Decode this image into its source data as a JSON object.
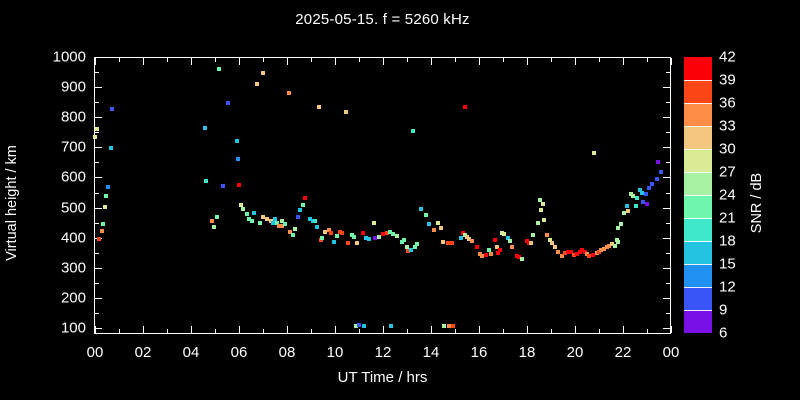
{
  "title": "2025-05-15. f = 5260 kHz",
  "chart_data": {
    "type": "scatter",
    "title": "2025-05-15. f = 5260 kHz",
    "xlabel": "UT Time / hrs",
    "ylabel": "Virtual height / km",
    "xlim": [
      0,
      24
    ],
    "ylim": [
      80,
      1000
    ],
    "grid": false,
    "x_ticks": {
      "hours": [
        0,
        2,
        4,
        6,
        8,
        10,
        12,
        14,
        16,
        18,
        20,
        22,
        24
      ],
      "labels": [
        "00",
        "02",
        "04",
        "06",
        "08",
        "10",
        "12",
        "14",
        "16",
        "18",
        "20",
        "22",
        "00"
      ],
      "minor_every_hr": 1
    },
    "y_ticks": {
      "km": [
        100,
        200,
        300,
        400,
        500,
        600,
        700,
        800,
        900,
        1000
      ],
      "labels": [
        "100",
        "200",
        "300",
        "400",
        "500",
        "600",
        "700",
        "800",
        "900",
        "1000"
      ],
      "minor_km": [
        150,
        250,
        350,
        450,
        550,
        650,
        750,
        850,
        950
      ]
    },
    "colorbar": {
      "label": "SNR / dB",
      "ticks": [
        6,
        9,
        12,
        15,
        18,
        21,
        24,
        27,
        30,
        33,
        36,
        39,
        42
      ],
      "colors_bottom_to_top": [
        "#7a10e8",
        "#3a55f7",
        "#2090f2",
        "#22c4e2",
        "#3fe8c8",
        "#6ef6ac",
        "#a5f2a2",
        "#d9eb94",
        "#f3c67d",
        "#fd8d47",
        "#fc4617",
        "#fb0007"
      ]
    },
    "points_format": [
      "ut_hour",
      "virtual_height_km",
      "snr_db"
    ],
    "points": [
      [
        0.02,
        734,
        29
      ],
      [
        0.08,
        760,
        29
      ],
      [
        0.17,
        396,
        38
      ],
      [
        0.29,
        422,
        35
      ],
      [
        0.33,
        445,
        23
      ],
      [
        0.42,
        502,
        29
      ],
      [
        0.46,
        538,
        23
      ],
      [
        0.55,
        568,
        14
      ],
      [
        0.67,
        698,
        17
      ],
      [
        0.71,
        827,
        11
      ],
      [
        4.58,
        764,
        17
      ],
      [
        4.63,
        588,
        20
      ],
      [
        4.86,
        454,
        35
      ],
      [
        4.96,
        435,
        26
      ],
      [
        5.07,
        468,
        23
      ],
      [
        5.17,
        960,
        23
      ],
      [
        5.35,
        572,
        11
      ],
      [
        5.55,
        847,
        11
      ],
      [
        5.9,
        721,
        17
      ],
      [
        5.95,
        661,
        14
      ],
      [
        6.0,
        575,
        41
      ],
      [
        6.08,
        509,
        29
      ],
      [
        6.18,
        494,
        26
      ],
      [
        6.32,
        479,
        23
      ],
      [
        6.43,
        461,
        23
      ],
      [
        6.53,
        454,
        23
      ],
      [
        6.64,
        483,
        17
      ],
      [
        6.75,
        909,
        32
      ],
      [
        6.88,
        450,
        23
      ],
      [
        6.99,
        948,
        32
      ],
      [
        6.99,
        470,
        32
      ],
      [
        7.15,
        461,
        32
      ],
      [
        7.32,
        456,
        32
      ],
      [
        7.4,
        450,
        17
      ],
      [
        7.5,
        461,
        17
      ],
      [
        7.6,
        448,
        23
      ],
      [
        7.68,
        440,
        35
      ],
      [
        7.78,
        454,
        26
      ],
      [
        7.79,
        438,
        35
      ],
      [
        7.92,
        447,
        23
      ],
      [
        8.1,
        879,
        35
      ],
      [
        8.13,
        420,
        35
      ],
      [
        8.24,
        409,
        23
      ],
      [
        8.33,
        428,
        26
      ],
      [
        8.47,
        468,
        11
      ],
      [
        8.54,
        492,
        17
      ],
      [
        8.68,
        509,
        23
      ],
      [
        8.75,
        531,
        41
      ],
      [
        8.96,
        461,
        17
      ],
      [
        9.07,
        456,
        17
      ],
      [
        9.17,
        454,
        20
      ],
      [
        9.26,
        437,
        17
      ],
      [
        9.35,
        835,
        32
      ],
      [
        9.4,
        392,
        38
      ],
      [
        9.47,
        398,
        23
      ],
      [
        9.58,
        420,
        32
      ],
      [
        9.76,
        424,
        35
      ],
      [
        9.82,
        414,
        38
      ],
      [
        9.96,
        384,
        17
      ],
      [
        10.1,
        407,
        23
      ],
      [
        10.2,
        420,
        38
      ],
      [
        10.3,
        417,
        38
      ],
      [
        10.46,
        818,
        32
      ],
      [
        10.55,
        383,
        38
      ],
      [
        10.7,
        409,
        23
      ],
      [
        10.8,
        403,
        23
      ],
      [
        10.88,
        107,
        26
      ],
      [
        10.9,
        383,
        32
      ],
      [
        11.0,
        111,
        11
      ],
      [
        11.18,
        415,
        41
      ],
      [
        11.22,
        105,
        17
      ],
      [
        11.3,
        398,
        17
      ],
      [
        11.43,
        395,
        17
      ],
      [
        11.64,
        448,
        29
      ],
      [
        11.67,
        398,
        8
      ],
      [
        11.85,
        403,
        26
      ],
      [
        12.0,
        411,
        41
      ],
      [
        12.15,
        415,
        38
      ],
      [
        12.3,
        420,
        23
      ],
      [
        12.32,
        107,
        17
      ],
      [
        12.4,
        412,
        23
      ],
      [
        12.57,
        405,
        26
      ],
      [
        12.78,
        386,
        23
      ],
      [
        12.87,
        392,
        23
      ],
      [
        12.99,
        370,
        26
      ],
      [
        13.05,
        356,
        38
      ],
      [
        13.17,
        359,
        17
      ],
      [
        13.26,
        754,
        20
      ],
      [
        13.33,
        370,
        23
      ],
      [
        13.4,
        379,
        23
      ],
      [
        13.58,
        494,
        17
      ],
      [
        13.79,
        475,
        23
      ],
      [
        13.92,
        444,
        17
      ],
      [
        14.14,
        426,
        35
      ],
      [
        14.3,
        450,
        29
      ],
      [
        14.4,
        433,
        32
      ],
      [
        14.5,
        387,
        32
      ],
      [
        14.54,
        107,
        26
      ],
      [
        14.72,
        383,
        38
      ],
      [
        14.75,
        108,
        35
      ],
      [
        14.86,
        383,
        38
      ],
      [
        14.9,
        108,
        38
      ],
      [
        15.25,
        398,
        17
      ],
      [
        15.35,
        417,
        41
      ],
      [
        15.4,
        835,
        41
      ],
      [
        15.4,
        409,
        26
      ],
      [
        15.5,
        401,
        32
      ],
      [
        15.58,
        395,
        32
      ],
      [
        15.7,
        390,
        35
      ],
      [
        15.9,
        368,
        41
      ],
      [
        16.04,
        346,
        35
      ],
      [
        16.14,
        339,
        35
      ],
      [
        16.3,
        342,
        41
      ],
      [
        16.4,
        359,
        23
      ],
      [
        16.5,
        346,
        35
      ],
      [
        16.67,
        392,
        41
      ],
      [
        16.74,
        368,
        32
      ],
      [
        16.8,
        348,
        41
      ],
      [
        16.87,
        359,
        41
      ],
      [
        16.97,
        417,
        29
      ],
      [
        17.05,
        411,
        29
      ],
      [
        17.22,
        398,
        17
      ],
      [
        17.29,
        390,
        26
      ],
      [
        17.36,
        368,
        35
      ],
      [
        17.57,
        339,
        41
      ],
      [
        17.67,
        335,
        41
      ],
      [
        17.78,
        328,
        26
      ],
      [
        17.99,
        390,
        41
      ],
      [
        18.08,
        383,
        41
      ],
      [
        18.17,
        381,
        32
      ],
      [
        18.26,
        409,
        26
      ],
      [
        18.45,
        448,
        26
      ],
      [
        18.54,
        525,
        26
      ],
      [
        18.6,
        492,
        29
      ],
      [
        18.65,
        512,
        29
      ],
      [
        18.72,
        460,
        29
      ],
      [
        18.82,
        409,
        35
      ],
      [
        18.96,
        392,
        29
      ],
      [
        19.03,
        383,
        32
      ],
      [
        19.17,
        368,
        32
      ],
      [
        19.3,
        354,
        35
      ],
      [
        19.44,
        339,
        35
      ],
      [
        19.58,
        348,
        38
      ],
      [
        19.7,
        354,
        41
      ],
      [
        19.83,
        351,
        41
      ],
      [
        19.96,
        342,
        38
      ],
      [
        20.07,
        346,
        41
      ],
      [
        20.2,
        354,
        41
      ],
      [
        20.3,
        359,
        41
      ],
      [
        20.4,
        354,
        41
      ],
      [
        20.5,
        346,
        35
      ],
      [
        20.6,
        339,
        38
      ],
      [
        20.76,
        342,
        41
      ],
      [
        20.78,
        680,
        29
      ],
      [
        20.9,
        348,
        35
      ],
      [
        21.0,
        354,
        38
      ],
      [
        21.1,
        359,
        35
      ],
      [
        21.22,
        361,
        35
      ],
      [
        21.32,
        368,
        35
      ],
      [
        21.43,
        372,
        35
      ],
      [
        21.53,
        379,
        32
      ],
      [
        21.67,
        372,
        26
      ],
      [
        21.74,
        392,
        26
      ],
      [
        21.8,
        386,
        26
      ],
      [
        21.8,
        433,
        26
      ],
      [
        21.9,
        444,
        26
      ],
      [
        22.04,
        481,
        26
      ],
      [
        22.15,
        504,
        17
      ],
      [
        22.22,
        488,
        32
      ],
      [
        22.33,
        546,
        26
      ],
      [
        22.43,
        537,
        26
      ],
      [
        22.54,
        504,
        20
      ],
      [
        22.6,
        533,
        20
      ],
      [
        22.7,
        558,
        17
      ],
      [
        22.78,
        549,
        17
      ],
      [
        22.85,
        520,
        11
      ],
      [
        22.96,
        545,
        11
      ],
      [
        22.99,
        512,
        8
      ],
      [
        23.1,
        564,
        11
      ],
      [
        23.22,
        578,
        11
      ],
      [
        23.4,
        594,
        11
      ],
      [
        23.47,
        652,
        8
      ],
      [
        23.58,
        619,
        11
      ]
    ]
  }
}
